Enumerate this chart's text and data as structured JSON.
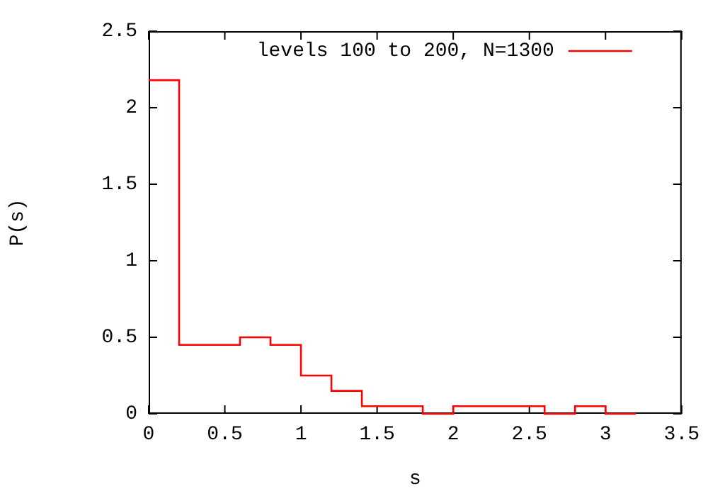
{
  "chart_data": {
    "type": "step",
    "xlabel": "s",
    "ylabel": "P(s)",
    "x": [
      0,
      0.2,
      0.4,
      0.6,
      0.8,
      1.0,
      1.2,
      1.4,
      1.6,
      1.8,
      2.0,
      2.2,
      2.4,
      2.6,
      2.8,
      3.0,
      3.2
    ],
    "series": [
      {
        "name": "levels 100 to 200, N=1300",
        "color": "#ff0000",
        "values": [
          2.18,
          0.45,
          0.45,
          0.5,
          0.45,
          0.25,
          0.15,
          0.05,
          0.05,
          0,
          0.05,
          0.05,
          0.05,
          0,
          0.05,
          0,
          0
        ]
      }
    ],
    "xlim": [
      0,
      3.5
    ],
    "xticks": [
      0,
      0.5,
      1,
      1.5,
      2,
      2.5,
      3,
      3.5
    ],
    "ylim": [
      0,
      2.5
    ],
    "yticks": [
      0,
      0.5,
      1,
      1.5,
      2,
      2.5
    ],
    "grid": false,
    "legend": "top right"
  }
}
